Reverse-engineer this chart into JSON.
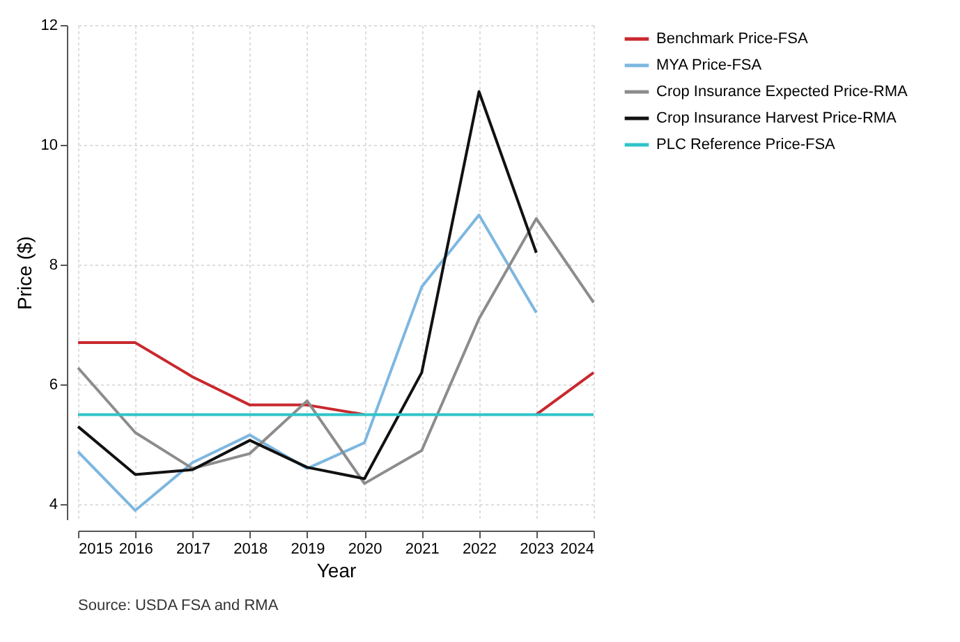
{
  "chart_data": {
    "type": "line",
    "xlabel": "Year",
    "ylabel": "Price ($)",
    "annotations": [
      "Source: USDA FSA and RMA"
    ],
    "x": [
      2015,
      2016,
      2017,
      2018,
      2019,
      2020,
      2021,
      2022,
      2023,
      2024
    ],
    "series": [
      {
        "name": "Benchmark Price-FSA",
        "color": "#c8282d",
        "values": [
          6.7,
          6.7,
          6.13,
          5.66,
          5.66,
          5.5,
          null,
          null,
          5.5,
          6.2
        ]
      },
      {
        "name": "MYA Price-FSA",
        "color": "#7db7e0",
        "values": [
          4.88,
          3.9,
          4.7,
          5.16,
          4.6,
          5.03,
          7.63,
          8.83,
          7.2,
          null
        ]
      },
      {
        "name": "Crop Insurance Expected Price-RMA",
        "color": "#8c8c8c",
        "values": [
          6.28,
          5.2,
          4.6,
          4.85,
          5.73,
          4.35,
          4.9,
          7.1,
          8.77,
          7.37
        ]
      },
      {
        "name": "Crop Insurance Harvest Price-RMA",
        "color": "#111111",
        "values": [
          5.3,
          4.5,
          4.58,
          5.07,
          4.62,
          4.43,
          6.2,
          10.89,
          8.2,
          null
        ]
      },
      {
        "name": "PLC Reference Price-FSA",
        "color": "#2ec4c8",
        "values": [
          5.5,
          5.5,
          5.5,
          5.5,
          5.5,
          5.5,
          5.5,
          5.5,
          5.5,
          5.5
        ]
      }
    ],
    "xlim": [
      2015,
      2024
    ],
    "xticks": [
      2015,
      2016,
      2017,
      2018,
      2019,
      2020,
      2021,
      2022,
      2023,
      2024
    ],
    "ylim": [
      3.75,
      12
    ],
    "yticks": [
      4,
      6,
      8,
      10,
      12
    ],
    "grid": true,
    "legend": "right",
    "line_style": "solid"
  }
}
